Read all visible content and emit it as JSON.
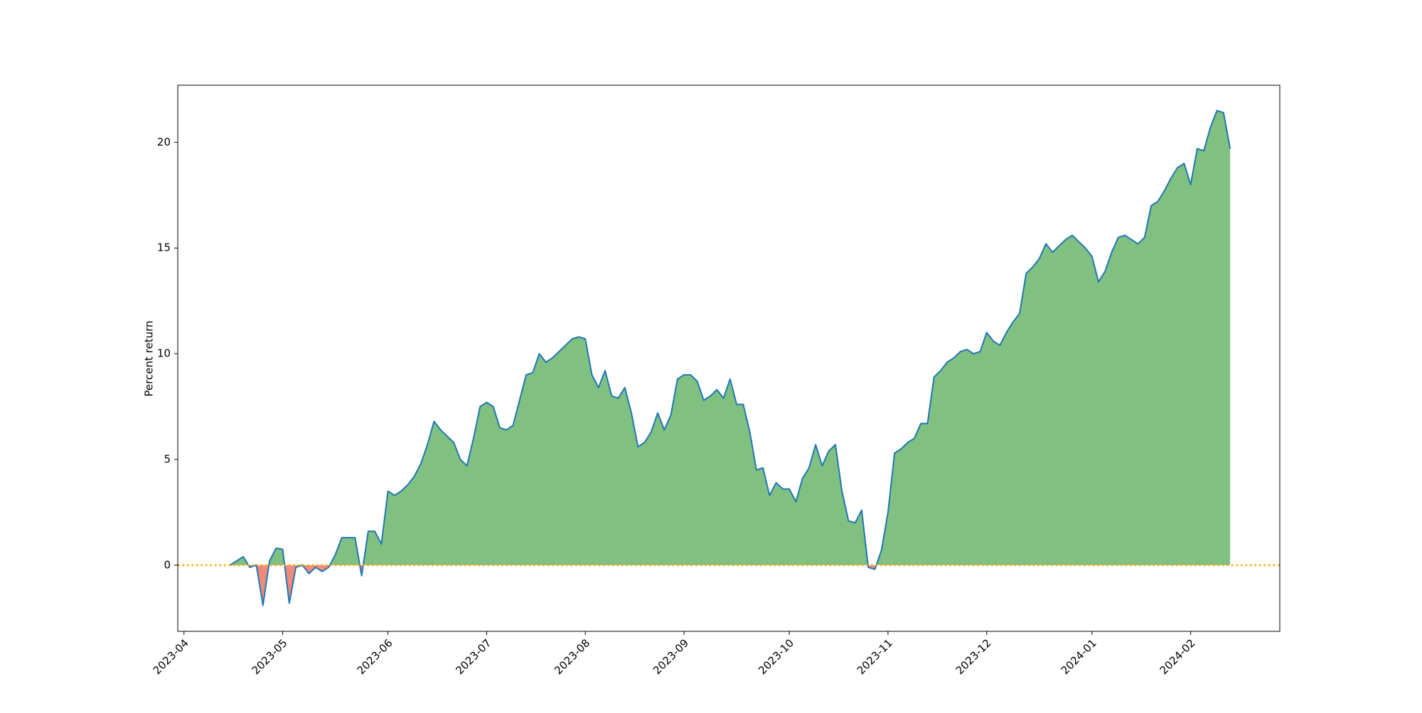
{
  "chart_data": {
    "type": "area",
    "y_label": "Percent return",
    "categories": [
      "2023-04",
      null,
      null,
      null,
      null,
      null,
      null,
      null,
      null,
      null,
      null,
      null,
      null,
      null,
      null,
      "2023-05",
      null,
      null,
      null,
      null,
      null,
      null,
      null,
      null,
      null,
      null,
      null,
      null,
      null,
      null,
      null,
      "2023-06",
      null,
      null,
      null,
      null,
      null,
      null,
      null,
      null,
      null,
      null,
      null,
      null,
      null,
      null,
      "2023-07",
      null,
      null,
      null,
      null,
      null,
      null,
      null,
      null,
      null,
      null,
      null,
      null,
      null,
      null,
      "2023-08",
      null,
      null,
      null,
      null,
      null,
      null,
      null,
      null,
      null,
      null,
      null,
      null,
      null,
      null,
      "2023-09",
      null,
      null,
      null,
      null,
      null,
      null,
      null,
      null,
      null,
      null,
      null,
      null,
      null,
      null,
      null,
      "2023-10",
      null,
      null,
      null,
      null,
      null,
      null,
      null,
      null,
      null,
      null,
      null,
      null,
      null,
      null,
      "2023-11",
      null,
      null,
      null,
      null,
      null,
      null,
      null,
      null,
      null,
      null,
      null,
      null,
      null,
      null,
      "2023-12",
      null,
      null,
      null,
      null,
      null,
      null,
      null,
      null,
      null,
      null,
      null,
      null,
      null,
      null,
      null,
      "2024-01",
      null,
      null,
      null,
      null,
      null,
      null,
      null,
      null,
      null,
      null,
      null,
      null,
      null,
      null,
      "2024-02",
      null,
      null,
      null,
      null,
      null,
      null,
      null,
      null,
      null,
      null,
      null,
      null,
      null
    ],
    "series": [
      {
        "color": "#1f77b4",
        "positive_fill": "#80c080",
        "negative_fill": "#f08a7c",
        "values": [
          null,
          null,
          null,
          null,
          null,
          null,
          null,
          0.0,
          0.2,
          0.4,
          -0.1,
          0.0,
          -1.9,
          0.2,
          0.8,
          0.75,
          -1.8,
          -0.1,
          0.0,
          -0.4,
          -0.1,
          -0.3,
          -0.1,
          0.5,
          1.3,
          1.3,
          1.3,
          -0.5,
          1.6,
          1.6,
          1.0,
          3.5,
          3.3,
          3.5,
          3.8,
          4.2,
          4.8,
          5.7,
          6.8,
          6.4,
          6.1,
          5.8,
          5.0,
          4.7,
          6.0,
          7.5,
          7.7,
          7.5,
          6.5,
          6.4,
          6.6,
          7.8,
          9.0,
          9.1,
          10.0,
          9.6,
          9.8,
          10.1,
          10.4,
          10.7,
          10.8,
          10.7,
          9.0,
          8.4,
          9.2,
          8.0,
          7.9,
          8.4,
          7.2,
          5.6,
          5.8,
          6.3,
          7.2,
          6.4,
          7.1,
          8.8,
          9.0,
          9.0,
          8.7,
          7.8,
          8.0,
          8.3,
          7.9,
          8.8,
          7.6,
          7.6,
          6.3,
          4.5,
          4.6,
          3.3,
          3.9,
          3.6,
          3.6,
          3.0,
          4.1,
          4.6,
          5.7,
          4.7,
          5.4,
          5.7,
          3.5,
          2.1,
          2.0,
          2.6,
          -0.1,
          -0.2,
          0.7,
          2.5,
          5.3,
          5.5,
          5.8,
          6.0,
          6.7,
          6.7,
          8.9,
          9.2,
          9.6,
          9.8,
          10.1,
          10.2,
          10.0,
          10.1,
          11.0,
          10.6,
          10.4,
          11.0,
          11.5,
          11.9,
          13.8,
          14.1,
          14.5,
          15.2,
          14.8,
          15.1,
          15.4,
          15.6,
          15.3,
          15.0,
          14.6,
          13.4,
          13.9,
          14.8,
          15.5,
          15.6,
          15.4,
          15.2,
          15.5,
          17.0,
          17.2,
          17.7,
          18.3,
          18.8,
          19.0,
          18.0,
          19.7,
          19.6,
          20.7,
          21.5,
          21.4,
          19.7,
          null,
          null,
          null,
          null,
          null,
          null,
          null
        ]
      }
    ],
    "hline": {
      "value": 0,
      "color": "#ffa500"
    },
    "ylim": [
      -3.13,
      22.7
    ],
    "yticks": [
      0,
      5,
      10,
      15,
      20
    ]
  }
}
